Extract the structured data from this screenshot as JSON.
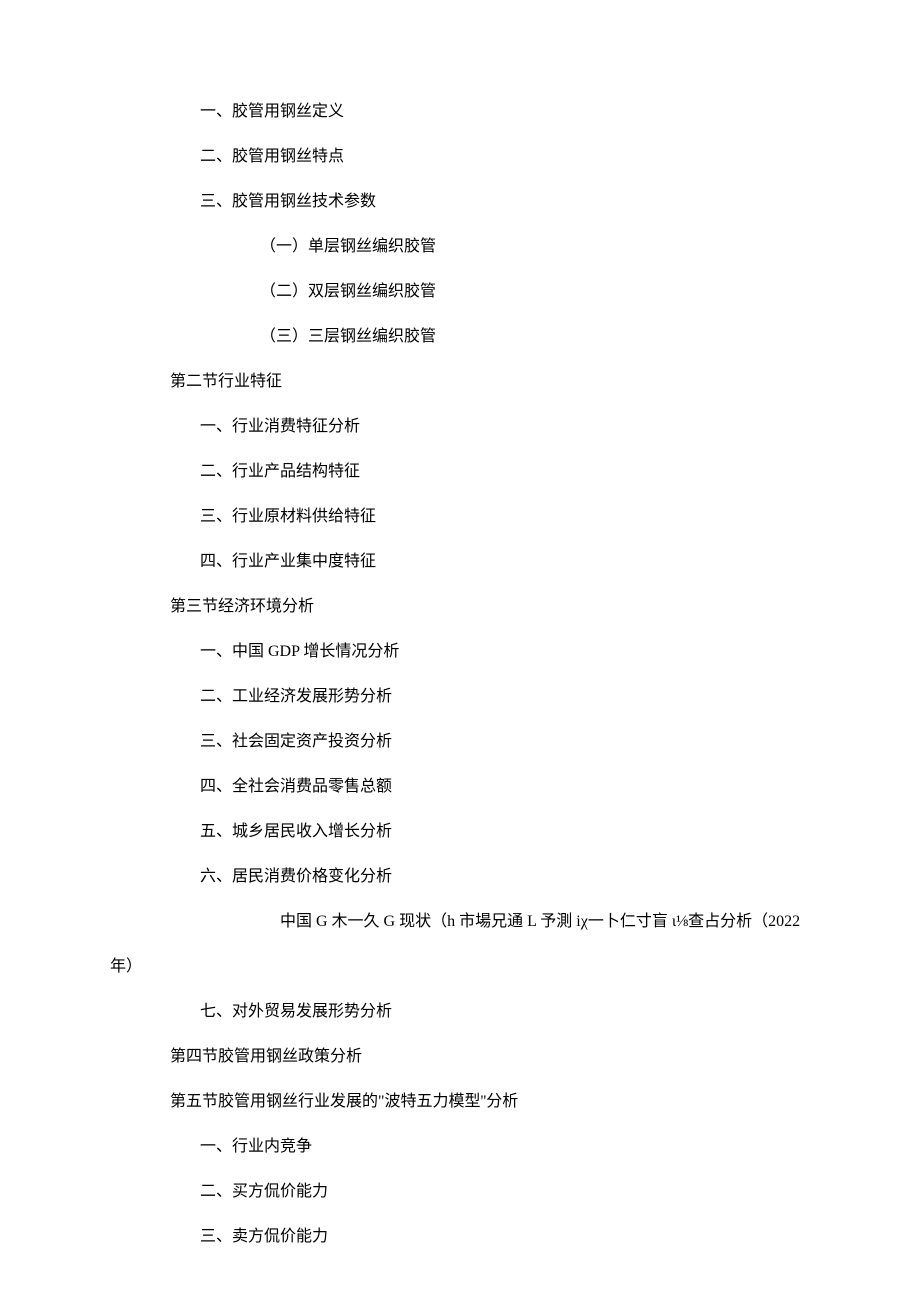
{
  "items": [
    {
      "cls": "item-l1",
      "text": "一、胶管用钢丝定义"
    },
    {
      "cls": "item-l1",
      "text": "二、胶管用钢丝特点"
    },
    {
      "cls": "item-l1",
      "text": "三、胶管用钢丝技术参数"
    },
    {
      "cls": "item-l2",
      "text": "（一）单层钢丝编织胶管"
    },
    {
      "cls": "item-l2",
      "text": "（二）双层钢丝编织胶管"
    },
    {
      "cls": "item-l2",
      "text": "（三）三层钢丝编织胶管"
    },
    {
      "cls": "item-section",
      "text": "第二节行业特征"
    },
    {
      "cls": "item-l1",
      "text": "一、行业消费特征分析"
    },
    {
      "cls": "item-l1",
      "text": "二、行业产品结构特征"
    },
    {
      "cls": "item-l1",
      "text": "三、行业原材料供给特征"
    },
    {
      "cls": "item-l1",
      "text": "四、行业产业集中度特征"
    },
    {
      "cls": "item-section",
      "text": "第三节经济环境分析"
    },
    {
      "cls": "item-l1",
      "text": "一、中国 GDP 增长情况分析"
    },
    {
      "cls": "item-l1",
      "text": "二、工业经济发展形势分析"
    },
    {
      "cls": "item-l1",
      "text": "三、社会固定资产投资分析"
    },
    {
      "cls": "item-l1",
      "text": "四、全社会消费品零售总额"
    },
    {
      "cls": "item-l1",
      "text": "五、城乡居民收入增长分析"
    },
    {
      "cls": "item-l1",
      "text": "六、居民消费价格变化分析"
    },
    {
      "cls": "item-footnote",
      "text": "中国 G 木一久 G 现状（h 市場兄通 L 予測 iχ一卜仁寸盲 ι⅛查占分析（2022"
    },
    {
      "cls": "item-year",
      "text": "年）"
    },
    {
      "cls": "item-l1",
      "text": "七、对外贸易发展形势分析"
    },
    {
      "cls": "item-section",
      "text": "第四节胶管用钢丝政策分析"
    },
    {
      "cls": "item-section",
      "text": "第五节胶管用钢丝行业发展的\"波特五力模型''分析"
    },
    {
      "cls": "item-l1",
      "text": "一、行业内竞争"
    },
    {
      "cls": "item-l1",
      "text": "二、买方侃价能力"
    },
    {
      "cls": "item-l1",
      "text": "三、卖方侃价能力"
    }
  ],
  "colors": {
    "background": "#ffffff",
    "text": "#000000"
  },
  "typography": {
    "font_family": "SimSun",
    "font_size_pt": 12,
    "line_height": 1.5
  }
}
